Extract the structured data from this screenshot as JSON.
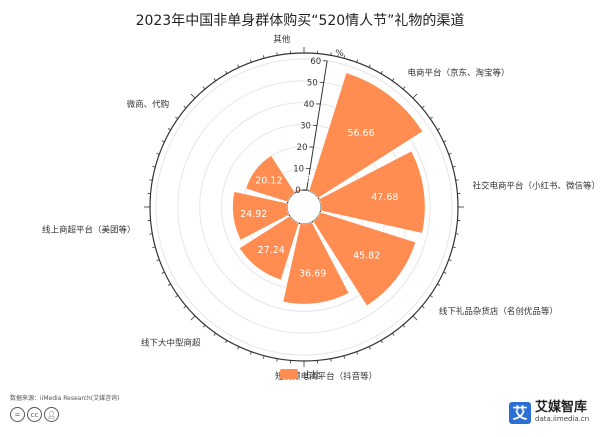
{
  "chart_data": {
    "type": "polar-bar",
    "title": "2023年中国非单身群体购买“520情人节”礼物的渠道",
    "unit_label": "%",
    "radial_axis": {
      "range": [
        0,
        60
      ],
      "ticks": [
        0,
        10,
        20,
        30,
        40,
        50,
        60
      ]
    },
    "legend": {
      "position": "bottom",
      "entries": [
        "占比"
      ]
    },
    "series": [
      {
        "name": "占比",
        "color": "#ff8c50",
        "categories": [
          "电商平台（京东、淘宝等）",
          "社交电商平台（小红书、微信等）",
          "线下礼品杂货店（名创优品等）",
          "短视频电商平台（抖音等）",
          "线下大中型商超",
          "线上商超平台（美团等）",
          "微商、代购",
          "其他"
        ],
        "values": [
          56.66,
          47.68,
          45.82,
          36.69,
          27.24,
          24.92,
          20.12,
          0.62
        ]
      }
    ]
  },
  "footer": {
    "source": "数据来源：iiMedia Research(艾媒咨询)",
    "license_icons": [
      "equal-icon",
      "cc-icon",
      "person-icon"
    ],
    "brand_mark": "艾",
    "brand_name": "艾媒智库",
    "brand_url": "data.iimedia.cn"
  }
}
